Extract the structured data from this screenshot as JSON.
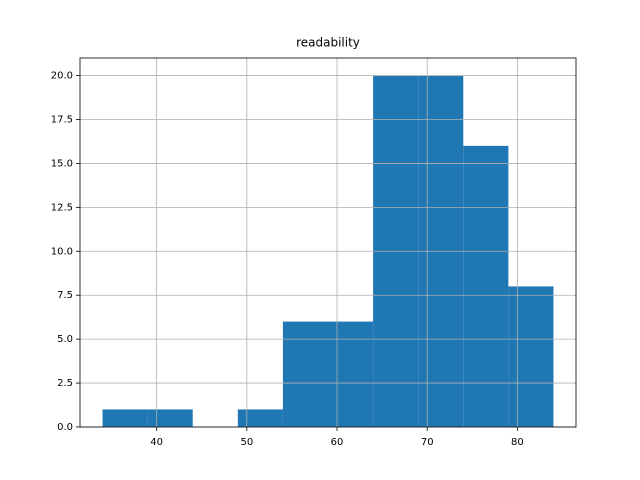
{
  "chart_data": {
    "type": "histogram",
    "title": "readability",
    "bins": [
      34,
      39,
      44,
      49,
      54,
      59,
      64,
      69,
      74,
      79,
      84
    ],
    "values": [
      1,
      1,
      0,
      1,
      6,
      6,
      20,
      20,
      16,
      8
    ],
    "color": "#1f77b4",
    "xlim": [
      31.5,
      86.5
    ],
    "xticks": [
      40,
      50,
      60,
      70,
      80
    ],
    "ylim": [
      0,
      21
    ],
    "yticks": [
      {
        "value": 0,
        "label": "0.0"
      },
      {
        "value": 2.5,
        "label": "2.5"
      },
      {
        "value": 5,
        "label": "5.0"
      },
      {
        "value": 7.5,
        "label": "7.5"
      },
      {
        "value": 10,
        "label": "10.0"
      },
      {
        "value": 12.5,
        "label": "12.5"
      },
      {
        "value": 15,
        "label": "15.0"
      },
      {
        "value": 17.5,
        "label": "17.5"
      },
      {
        "value": 20,
        "label": "20.0"
      }
    ],
    "grid": true
  }
}
